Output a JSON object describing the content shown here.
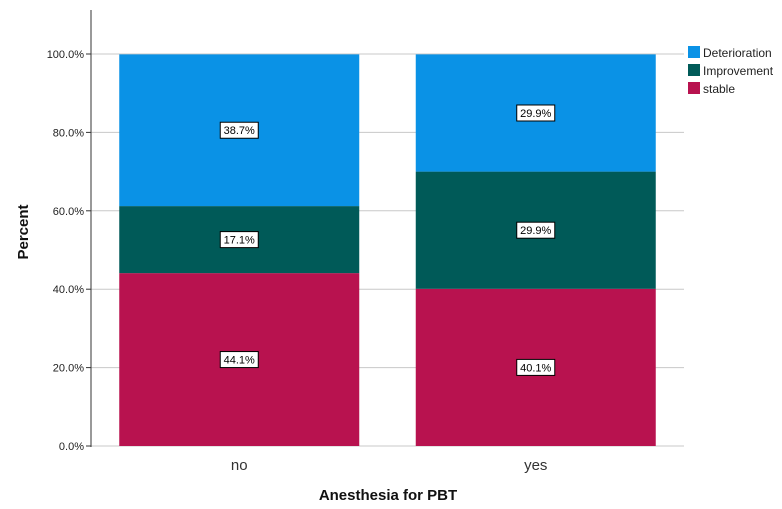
{
  "chart_data": {
    "type": "bar",
    "stacked": true,
    "categories": [
      "no",
      "yes"
    ],
    "series": [
      {
        "name": "stable",
        "values": [
          44.1,
          40.1
        ],
        "labels": [
          "44.1%",
          "40.1%"
        ],
        "color": "#b8124f"
      },
      {
        "name": "Improvement",
        "values": [
          17.1,
          29.9
        ],
        "labels": [
          "17.1%",
          "29.9%"
        ],
        "color": "#005a58"
      },
      {
        "name": "Deterioration",
        "values": [
          38.7,
          29.9
        ],
        "labels": [
          "38.7%",
          "29.9%"
        ],
        "color": "#0a92e6"
      }
    ],
    "legend_order": [
      "Deterioration",
      "Improvement",
      "stable"
    ],
    "xlabel": "Anesthesia for PBT",
    "ylabel": "Percent",
    "ylim": [
      0,
      100
    ],
    "yticks": [
      "0.0%",
      "20.0%",
      "40.0%",
      "60.0%",
      "80.0%",
      "100.0%"
    ],
    "ytick_values": [
      0,
      20,
      40,
      60,
      80,
      100
    ],
    "grid": true,
    "legend_position": "top-right"
  }
}
